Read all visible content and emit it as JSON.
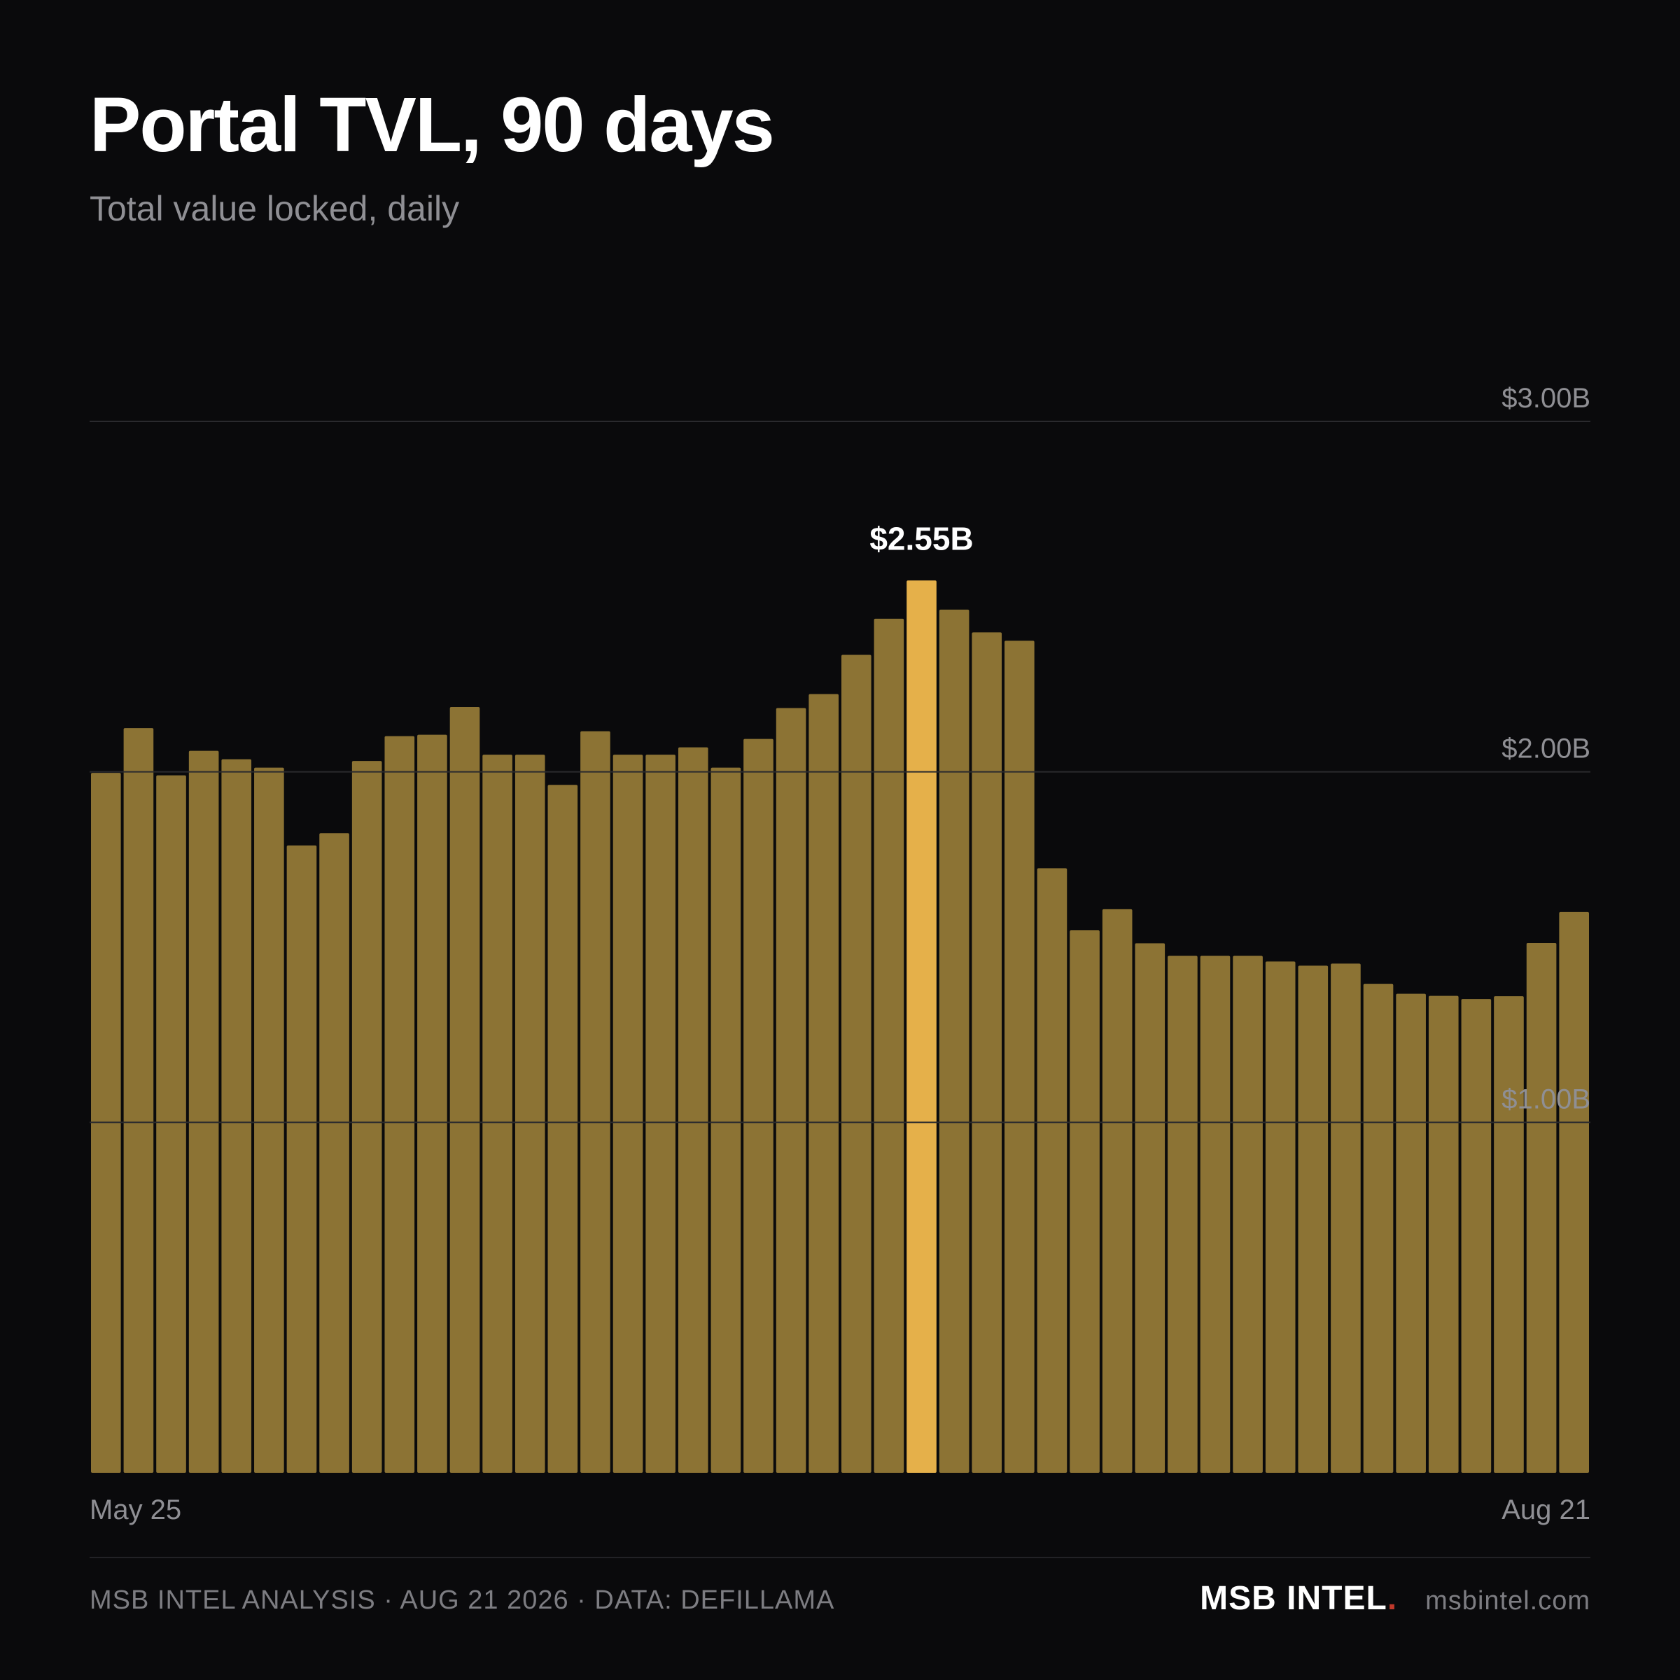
{
  "header": {
    "title": "Portal TVL, 90 days",
    "subtitle": "Total value locked, daily"
  },
  "chart_data": {
    "type": "bar",
    "title": "Portal TVL, 90 days",
    "subtitle": "Total value locked, daily",
    "ylim": [
      0,
      3.0
    ],
    "unit": "USD billions",
    "y_ticks": [
      {
        "value": 3.0,
        "label": "$3.00B"
      },
      {
        "value": 2.0,
        "label": "$2.00B"
      },
      {
        "value": 1.0,
        "label": "$1.00B"
      }
    ],
    "x_labels": {
      "start": "May 25",
      "end": "Aug 21"
    },
    "grid": true,
    "colors": {
      "bar": "#8c7334",
      "highlight": "#e5b04a",
      "grid": "#2a2a2e",
      "tick": "#8f8f94"
    },
    "highlight_index": 25,
    "highlight_label": "$2.55B",
    "values": [
      1.997,
      2.125,
      1.99,
      2.06,
      2.036,
      2.012,
      1.79,
      1.825,
      2.031,
      2.102,
      2.106,
      2.185,
      2.049,
      2.049,
      1.963,
      2.116,
      2.049,
      2.049,
      2.07,
      2.012,
      2.094,
      2.182,
      2.222,
      2.334,
      2.437,
      2.546,
      2.463,
      2.398,
      2.374,
      1.725,
      1.548,
      1.608,
      1.511,
      1.475,
      1.475,
      1.475,
      1.459,
      1.447,
      1.453,
      1.395,
      1.367,
      1.361,
      1.352,
      1.36,
      1.512,
      1.6
    ]
  },
  "footer": {
    "source": "MSB INTEL ANALYSIS · AUG 21 2026 · DATA: DEFILLAMA",
    "brand": "MSB INTEL",
    "brand_dot": ".",
    "site": "msbintel.com"
  }
}
